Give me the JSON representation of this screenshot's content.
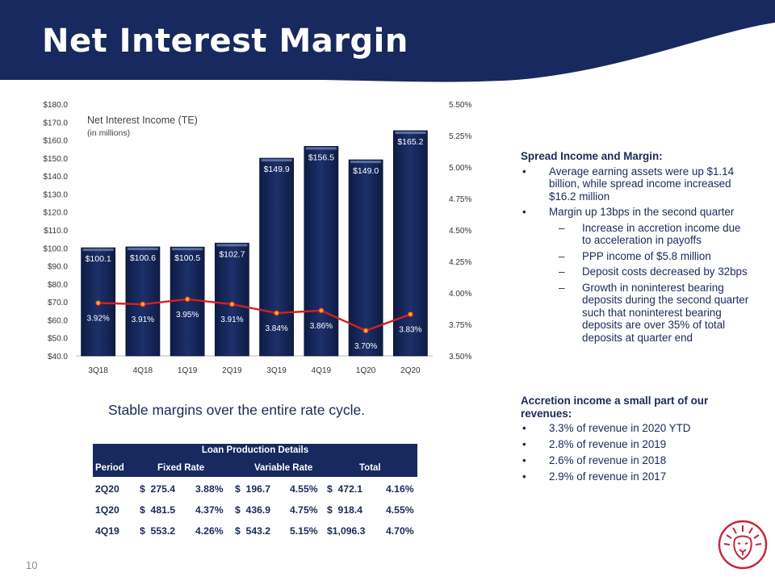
{
  "slide": {
    "title": "Net Interest Margin",
    "page_number": "10",
    "brand_color": "#17295e",
    "accent_color": "#c8233c"
  },
  "chart_data": {
    "type": "bar",
    "title": "Net Interest Income (TE)",
    "subtitle": "(in millions)",
    "categories": [
      "3Q18",
      "4Q18",
      "1Q19",
      "2Q19",
      "3Q19",
      "4Q19",
      "1Q20",
      "2Q20"
    ],
    "y_ticks": [
      "$180.0",
      "$170.0",
      "$160.0",
      "$150.0",
      "$140.0",
      "$130.0",
      "$120.0",
      "$110.0",
      "$100.0",
      "$90.0",
      "$80.0",
      "$70.0",
      "$60.0",
      "$50.0",
      "$40.0"
    ],
    "y2_ticks": [
      "5.50%",
      "5.25%",
      "5.00%",
      "4.75%",
      "4.50%",
      "4.25%",
      "4.00%",
      "3.75%",
      "3.50%"
    ],
    "ylim": [
      40,
      180
    ],
    "y2lim": [
      3.5,
      5.5
    ],
    "grid": false,
    "series": [
      {
        "type": "bar",
        "values": [
          100.1,
          100.6,
          100.5,
          102.7,
          149.9,
          156.5,
          149.0,
          165.2
        ],
        "labels": [
          "$100.1",
          "$100.6",
          "$100.5",
          "$102.7",
          "$149.9",
          "$156.5",
          "$149.0",
          "$165.2"
        ],
        "color": "#17295e"
      },
      {
        "type": "line",
        "axis": "right",
        "values": [
          3.92,
          3.91,
          3.95,
          3.91,
          3.84,
          3.86,
          3.7,
          3.83
        ],
        "labels": [
          "3.92%",
          "3.91%",
          "3.95%",
          "3.91%",
          "3.84%",
          "3.86%",
          "3.70%",
          "3.83%"
        ],
        "color": "#d42020",
        "marker_color": "#f5a623"
      }
    ]
  },
  "spread": {
    "heading": "Spread Income and Margin:",
    "bullet1": "Average earning assets were up $1.14 billion, while spread income increased $16.2 million",
    "bullet2": "Margin up 13bps in the second quarter",
    "sub1": "Increase in accretion income due to acceleration in payoffs",
    "sub2": "PPP income of $5.8 million",
    "sub3": "Deposit costs decreased by 32bps",
    "sub4": "Growth in noninterest bearing deposits during the second quarter such that noninterest bearing deposits are over 35% of total deposits at quarter end"
  },
  "accretion": {
    "heading": "Accretion income a small part of our revenues:",
    "items": [
      "3.3% of revenue in 2020 YTD",
      "2.8% of revenue in 2019",
      "2.6% of revenue in 2018",
      "2.9% of revenue in 2017"
    ]
  },
  "stable_note": "Stable margins over the entire rate cycle.",
  "loan_table": {
    "caption": "Loan Production Details",
    "col_period": "Period",
    "col_fixed": "Fixed Rate",
    "col_variable": "Variable Rate",
    "col_total": "Total",
    "rows": [
      {
        "period": "2Q20",
        "fixed_amt": "$  275.4",
        "fixed_rate": "3.88%",
        "var_amt": "$  196.7",
        "var_rate": "4.55%",
        "total_amt": "$  472.1",
        "total_rate": "4.16%"
      },
      {
        "period": "1Q20",
        "fixed_amt": "$  481.5",
        "fixed_rate": "4.37%",
        "var_amt": "$  436.9",
        "var_rate": "4.75%",
        "total_amt": "$  918.4",
        "total_rate": "4.55%"
      },
      {
        "period": "4Q19",
        "fixed_amt": "$  553.2",
        "fixed_rate": "4.26%",
        "var_amt": "$  543.2",
        "var_rate": "5.15%",
        "total_amt": "$1,096.3",
        "total_rate": "4.70%"
      }
    ]
  }
}
